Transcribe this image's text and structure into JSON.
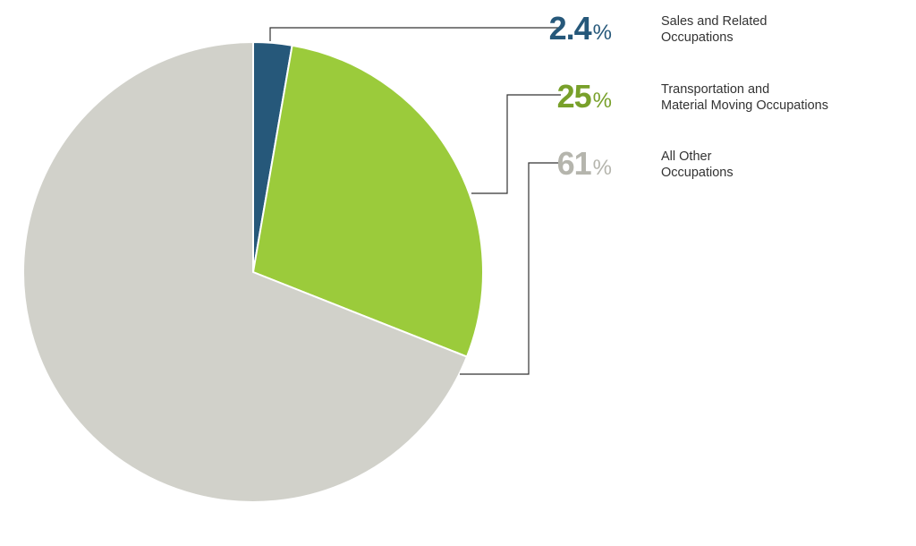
{
  "chart_data": {
    "type": "pie",
    "title": "",
    "start_angle_deg": 0,
    "direction": "clockwise",
    "slices": [
      {
        "label": "Sales and Related\nOccupations",
        "value": 2.4,
        "value_text": "2.4",
        "pct_text": "%",
        "color": "#26587a",
        "text_color": "#26587a"
      },
      {
        "label": "Transportation and\nMaterial Moving Occupations",
        "value": 25,
        "value_text": "25",
        "pct_text": "%",
        "color": "#9bcb3b",
        "text_color": "#78a02a"
      },
      {
        "label": "All Other\nOccupations",
        "value": 61,
        "value_text": "61",
        "pct_text": "%",
        "color": "#d1d1ca",
        "text_color": "#b5b5ad"
      }
    ],
    "leader_line_color": "#333333",
    "legend_position": "right"
  }
}
